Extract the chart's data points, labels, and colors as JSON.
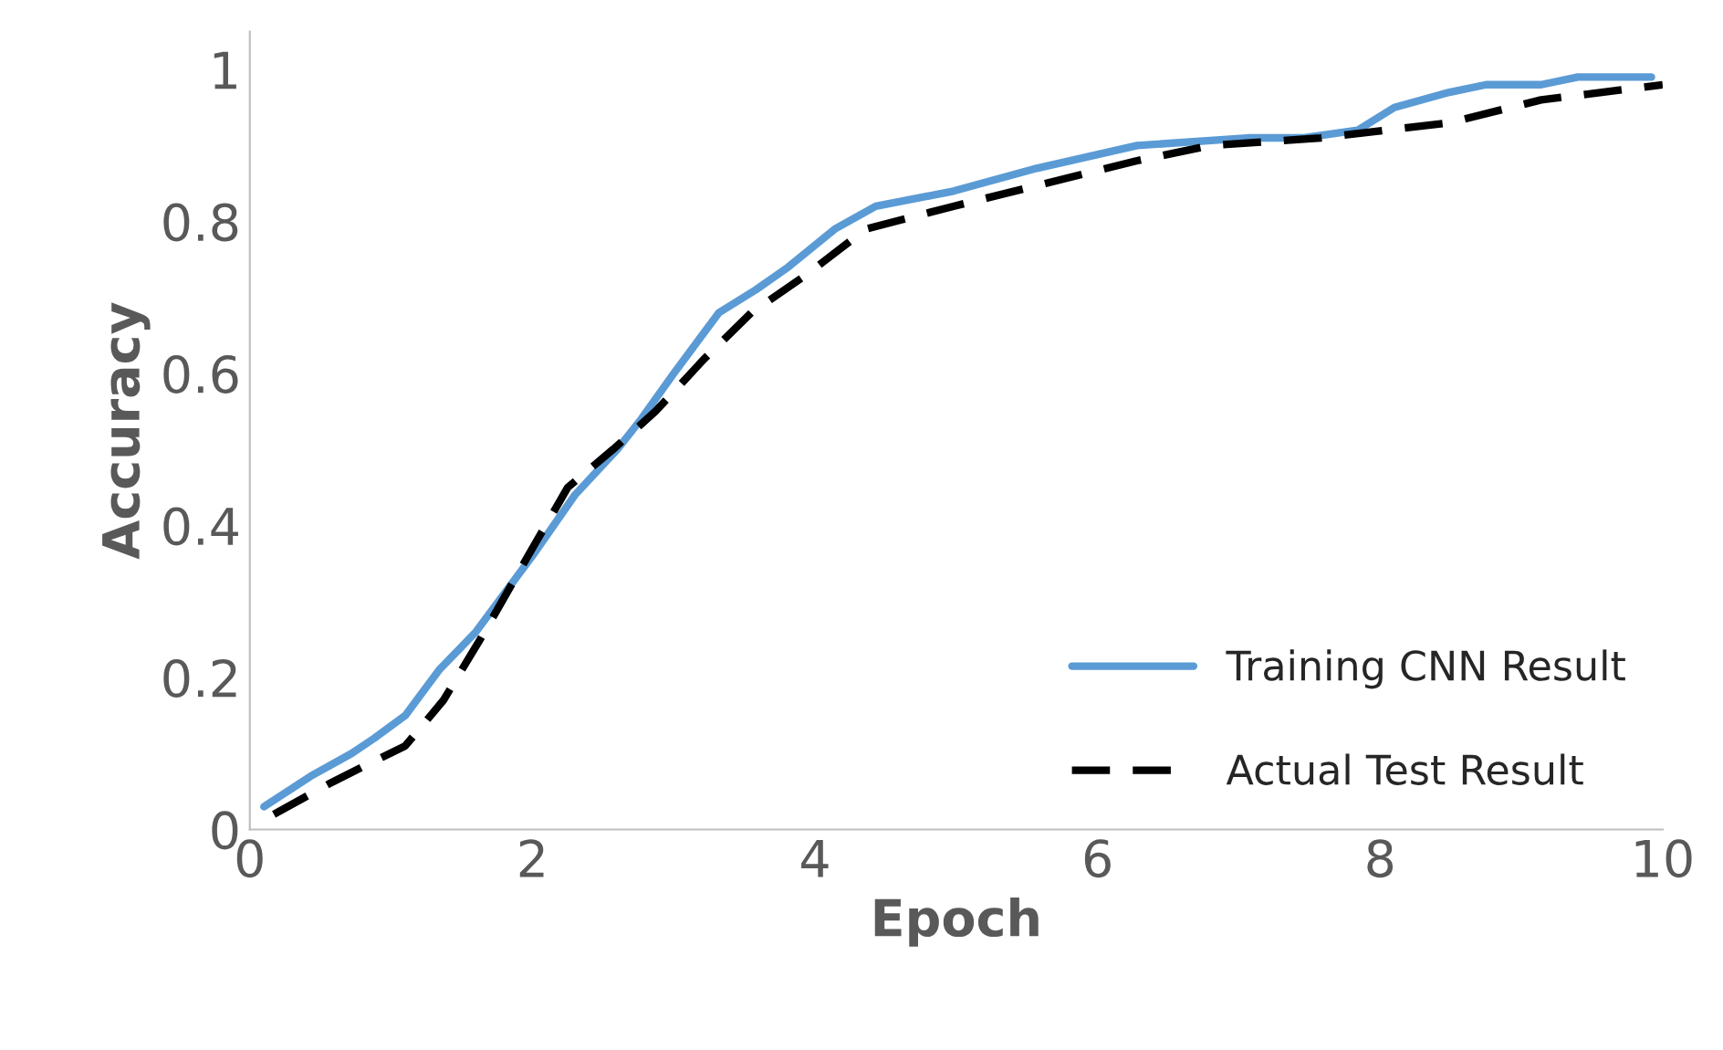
{
  "chart_data": {
    "type": "line",
    "xlabel": "Epoch",
    "ylabel": "Accuracy",
    "xlim": [
      0,
      10
    ],
    "xticks": [
      0,
      2,
      4,
      6,
      8,
      10
    ],
    "ylim": [
      0,
      1.05
    ],
    "yticks": [
      0,
      0.2,
      0.4,
      0.6,
      0.8,
      1
    ],
    "grid": false,
    "legend": "bottom right",
    "marker": "none",
    "series": [
      {
        "name": "Training CNN Result",
        "color": "#5b9bd5",
        "line_style": "solid",
        "x": [
          0.1,
          0.43,
          0.72,
          0.88,
          1.1,
          1.34,
          1.6,
          2.0,
          2.3,
          2.6,
          2.77,
          3.0,
          3.16,
          3.32,
          3.58,
          3.81,
          4.14,
          4.43,
          4.98,
          5.57,
          6.28,
          7.06,
          7.45,
          7.84,
          8.1,
          8.49,
          8.75,
          9.14,
          9.4,
          9.92
        ],
        "values": [
          0.03,
          0.07,
          0.1,
          0.12,
          0.15,
          0.21,
          0.26,
          0.36,
          0.44,
          0.5,
          0.54,
          0.6,
          0.64,
          0.68,
          0.71,
          0.74,
          0.79,
          0.82,
          0.84,
          0.87,
          0.9,
          0.91,
          0.91,
          0.92,
          0.95,
          0.97,
          0.98,
          0.98,
          0.99,
          0.99
        ]
      },
      {
        "name": "Actual Test Result",
        "color": "#000000",
        "line_style": "dashed",
        "x": [
          0.17,
          0.56,
          0.88,
          1.1,
          1.37,
          1.63,
          2.0,
          2.25,
          2.57,
          2.87,
          3.22,
          3.55,
          3.94,
          4.36,
          4.98,
          5.63,
          6.28,
          6.8,
          7.58,
          8.49,
          9.14,
          10.0
        ],
        "values": [
          0.02,
          0.06,
          0.09,
          0.11,
          0.17,
          0.25,
          0.37,
          0.45,
          0.5,
          0.55,
          0.62,
          0.68,
          0.73,
          0.79,
          0.82,
          0.85,
          0.88,
          0.9,
          0.91,
          0.93,
          0.96,
          0.98
        ]
      }
    ]
  }
}
